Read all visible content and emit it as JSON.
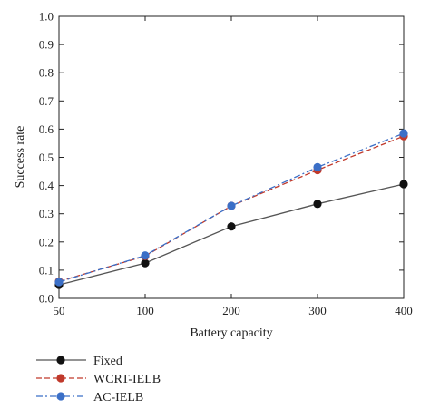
{
  "chart_data": {
    "type": "line",
    "xlabel": "Battery capacity",
    "ylabel": "Success rate",
    "x_categories": [
      "50",
      "100",
      "200",
      "300",
      "400"
    ],
    "ylim": [
      0,
      1.0
    ],
    "y_ticks": [
      "0.0",
      "0.1",
      "0.2",
      "0.3",
      "0.4",
      "0.5",
      "0.6",
      "0.7",
      "0.8",
      "0.9",
      "1.0"
    ],
    "grid": false,
    "legend_position": "bottom-left",
    "series": [
      {
        "name": "Fixed",
        "values": [
          0.048,
          0.125,
          0.255,
          0.335,
          0.405
        ],
        "line_color": "#555555",
        "marker_color": "#111111",
        "dash": "solid"
      },
      {
        "name": "WCRT-IELB",
        "values": [
          0.06,
          0.15,
          0.328,
          0.455,
          0.575
        ],
        "line_color": "#c0392b",
        "marker_color": "#c0392b",
        "dash": "dashed"
      },
      {
        "name": "AC-IELB",
        "values": [
          0.058,
          0.152,
          0.328,
          0.465,
          0.585
        ],
        "line_color": "#3b6fc7",
        "marker_color": "#3b6fc7",
        "dash": "dashdot"
      }
    ]
  }
}
